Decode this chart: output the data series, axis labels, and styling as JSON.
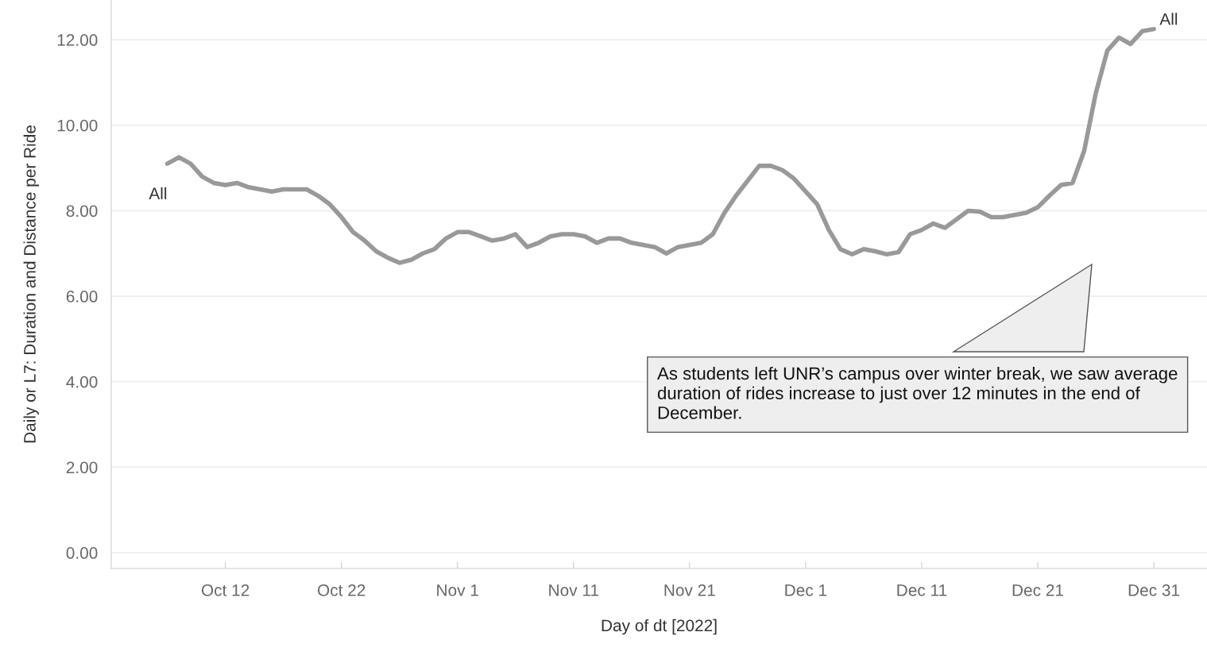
{
  "chart_data": {
    "type": "line",
    "xlabel": "Day of dt [2022]",
    "ylabel": "Daily or L7: Duration and Distance per Ride",
    "x": [
      "2022-10-07",
      "2022-10-08",
      "2022-10-09",
      "2022-10-10",
      "2022-10-11",
      "2022-10-12",
      "2022-10-13",
      "2022-10-14",
      "2022-10-15",
      "2022-10-16",
      "2022-10-17",
      "2022-10-18",
      "2022-10-19",
      "2022-10-20",
      "2022-10-21",
      "2022-10-22",
      "2022-10-23",
      "2022-10-24",
      "2022-10-25",
      "2022-10-26",
      "2022-10-27",
      "2022-10-28",
      "2022-10-29",
      "2022-10-30",
      "2022-10-31",
      "2022-11-01",
      "2022-11-02",
      "2022-11-03",
      "2022-11-04",
      "2022-11-05",
      "2022-11-06",
      "2022-11-07",
      "2022-11-08",
      "2022-11-09",
      "2022-11-10",
      "2022-11-11",
      "2022-11-12",
      "2022-11-13",
      "2022-11-14",
      "2022-11-15",
      "2022-11-16",
      "2022-11-17",
      "2022-11-18",
      "2022-11-19",
      "2022-11-20",
      "2022-11-21",
      "2022-11-22",
      "2022-11-23",
      "2022-11-24",
      "2022-11-25",
      "2022-11-26",
      "2022-11-27",
      "2022-11-28",
      "2022-11-29",
      "2022-11-30",
      "2022-12-01",
      "2022-12-02",
      "2022-12-03",
      "2022-12-04",
      "2022-12-05",
      "2022-12-06",
      "2022-12-07",
      "2022-12-08",
      "2022-12-09",
      "2022-12-10",
      "2022-12-11",
      "2022-12-12",
      "2022-12-13",
      "2022-12-14",
      "2022-12-15",
      "2022-12-16",
      "2022-12-17",
      "2022-12-18",
      "2022-12-19",
      "2022-12-20",
      "2022-12-21",
      "2022-12-22",
      "2022-12-23",
      "2022-12-24",
      "2022-12-25",
      "2022-12-26",
      "2022-12-27",
      "2022-12-28",
      "2022-12-29",
      "2022-12-30",
      "2022-12-31"
    ],
    "series": [
      {
        "name": "All",
        "color": "#999999",
        "values": [
          9.1,
          9.25,
          9.1,
          8.8,
          8.65,
          8.6,
          8.65,
          8.55,
          8.5,
          8.45,
          8.5,
          8.5,
          8.5,
          8.35,
          8.15,
          7.85,
          7.5,
          7.3,
          7.05,
          6.9,
          6.78,
          6.85,
          7.0,
          7.1,
          7.35,
          7.5,
          7.5,
          7.4,
          7.3,
          7.35,
          7.45,
          7.15,
          7.25,
          7.4,
          7.45,
          7.45,
          7.4,
          7.25,
          7.35,
          7.35,
          7.25,
          7.2,
          7.15,
          7.0,
          7.15,
          7.2,
          7.25,
          7.45,
          7.95,
          8.35,
          8.7,
          9.05,
          9.05,
          8.95,
          8.75,
          8.45,
          8.15,
          7.55,
          7.1,
          6.98,
          7.1,
          7.05,
          6.98,
          7.03,
          7.45,
          7.55,
          7.7,
          7.6,
          7.8,
          8.0,
          7.98,
          7.85,
          7.85,
          7.9,
          7.95,
          8.08,
          8.35,
          8.6,
          8.65,
          9.4,
          10.75,
          11.75,
          12.05,
          11.9,
          12.2,
          12.25
        ]
      }
    ],
    "xlim": [
      "2022-10-02T04:00",
      "2023-01-04T14:00"
    ],
    "xticks": [
      {
        "value": "2022-10-12",
        "label": "Oct 12"
      },
      {
        "value": "2022-10-22",
        "label": "Oct 22"
      },
      {
        "value": "2022-11-01",
        "label": "Nov 1"
      },
      {
        "value": "2022-11-11",
        "label": "Nov 11"
      },
      {
        "value": "2022-11-21",
        "label": "Nov 21"
      },
      {
        "value": "2022-12-01",
        "label": "Dec 1"
      },
      {
        "value": "2022-12-11",
        "label": "Dec 11"
      },
      {
        "value": "2022-12-21",
        "label": "Dec 21"
      },
      {
        "value": "2022-12-31",
        "label": "Dec 31"
      }
    ],
    "ylim": [
      -0.37,
      12.93
    ],
    "yticks": [
      {
        "value": 0,
        "label": "0.00"
      },
      {
        "value": 2,
        "label": "2.00"
      },
      {
        "value": 4,
        "label": "4.00"
      },
      {
        "value": 6,
        "label": "6.00"
      },
      {
        "value": 8,
        "label": "8.00"
      },
      {
        "value": 10,
        "label": "10.00"
      },
      {
        "value": 12,
        "label": "12.00"
      }
    ],
    "grid": "y",
    "legend": false,
    "annotations": [
      "As students left UNR’s campus over winter break, we saw average duration of rides increase to just over 12 minutes in the end of December."
    ]
  }
}
